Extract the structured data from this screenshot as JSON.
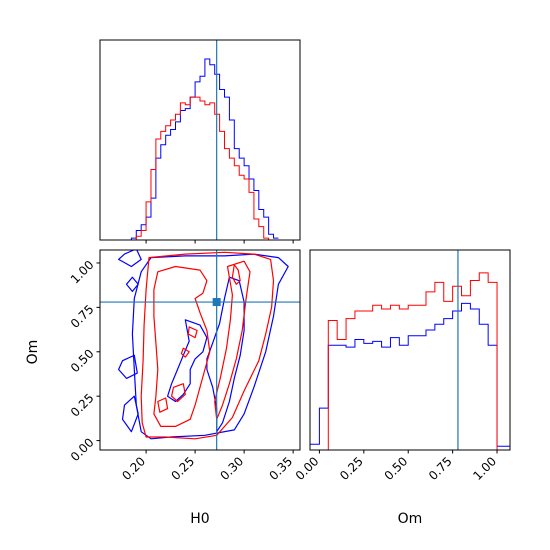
{
  "chart_data": {
    "type": "corner",
    "colors": {
      "series_a": "#0000ff",
      "series_b": "#ff0000",
      "truth": "#1f77b4"
    },
    "truths": {
      "H0": 0.272,
      "Om": 0.78
    },
    "parameters": [
      {
        "name": "H0",
        "label": "H0",
        "range": [
          0.153,
          0.357
        ],
        "ticks": [
          0.2,
          0.25,
          0.3,
          0.35
        ],
        "tick_labels": [
          "0.20",
          "0.25",
          "0.30",
          "0.35"
        ]
      },
      {
        "name": "Om",
        "label": "Om",
        "range": [
          -0.053,
          1.073
        ],
        "ticks": [
          0.0,
          0.25,
          0.5,
          0.75,
          1.0
        ],
        "tick_labels": [
          "0.00",
          "0.25",
          "0.50",
          "0.75",
          "1.00"
        ]
      }
    ],
    "marginals": {
      "H0": {
        "ymax": 1.0,
        "series": [
          {
            "name": "",
            "color": "#0000ff",
            "edges": [
              0.175,
              0.185,
              0.19,
              0.195,
              0.2,
              0.205,
              0.21,
              0.215,
              0.22,
              0.225,
              0.23,
              0.235,
              0.24,
              0.245,
              0.25,
              0.255,
              0.26,
              0.265,
              0.27,
              0.275,
              0.28,
              0.285,
              0.29,
              0.295,
              0.3,
              0.305,
              0.31,
              0.315,
              0.32,
              0.325,
              0.33,
              0.335
            ],
            "values": [
              0.0,
              0.01,
              0.05,
              0.08,
              0.12,
              0.22,
              0.43,
              0.5,
              0.55,
              0.58,
              0.62,
              0.68,
              0.69,
              0.75,
              0.83,
              0.86,
              0.95,
              0.92,
              0.87,
              0.79,
              0.75,
              0.63,
              0.48,
              0.43,
              0.39,
              0.32,
              0.26,
              0.16,
              0.12,
              0.03,
              0.01
            ]
          },
          {
            "name": "",
            "color": "#ff0000",
            "edges": [
              0.175,
              0.185,
              0.19,
              0.195,
              0.2,
              0.205,
              0.21,
              0.215,
              0.22,
              0.225,
              0.23,
              0.235,
              0.24,
              0.245,
              0.25,
              0.255,
              0.26,
              0.265,
              0.27,
              0.275,
              0.28,
              0.285,
              0.29,
              0.295,
              0.3,
              0.305,
              0.31,
              0.315,
              0.32,
              0.325,
              0.33,
              0.335
            ],
            "values": [
              0.0,
              0.0,
              0.02,
              0.05,
              0.2,
              0.37,
              0.53,
              0.57,
              0.6,
              0.63,
              0.66,
              0.72,
              0.71,
              0.75,
              0.75,
              0.73,
              0.71,
              0.72,
              0.66,
              0.57,
              0.48,
              0.43,
              0.39,
              0.34,
              0.32,
              0.25,
              0.11,
              0.07,
              0.01,
              0.0,
              0.0
            ]
          }
        ]
      },
      "Om": {
        "ymax": 1.0,
        "series": [
          {
            "name": "",
            "color": "#0000ff",
            "edges": [
              -0.053,
              0.0,
              0.05,
              0.1,
              0.15,
              0.2,
              0.25,
              0.3,
              0.35,
              0.4,
              0.45,
              0.5,
              0.55,
              0.6,
              0.65,
              0.7,
              0.75,
              0.8,
              0.85,
              0.9,
              0.95,
              1.0,
              1.073
            ],
            "values": [
              0.03,
              0.22,
              0.55,
              0.55,
              0.54,
              0.58,
              0.56,
              0.57,
              0.54,
              0.59,
              0.55,
              0.6,
              0.6,
              0.63,
              0.66,
              0.69,
              0.73,
              0.77,
              0.74,
              0.66,
              0.55,
              0.02
            ]
          },
          {
            "name": "",
            "color": "#ff0000",
            "edges": [
              -0.053,
              0.0,
              0.05,
              0.1,
              0.15,
              0.2,
              0.25,
              0.3,
              0.35,
              0.4,
              0.45,
              0.5,
              0.55,
              0.6,
              0.65,
              0.7,
              0.75,
              0.8,
              0.85,
              0.9,
              0.95,
              1.0,
              1.073
            ],
            "values": [
              0.0,
              0.0,
              0.68,
              0.58,
              0.69,
              0.73,
              0.73,
              0.76,
              0.74,
              0.76,
              0.74,
              0.76,
              0.76,
              0.83,
              0.88,
              0.78,
              0.86,
              0.81,
              0.89,
              0.93,
              0.88,
              0.0
            ]
          }
        ]
      }
    },
    "joint": {
      "x": "H0",
      "y": "Om",
      "contours": [
        {
          "color": "#0000ff",
          "points": [
            [
              0.205,
              1.03
            ],
            [
              0.24,
              1.04
            ],
            [
              0.28,
              1.04
            ],
            [
              0.31,
              1.05
            ],
            [
              0.335,
              1.03
            ],
            [
              0.345,
              0.98
            ],
            [
              0.335,
              0.88
            ],
            [
              0.33,
              0.7
            ],
            [
              0.322,
              0.5
            ],
            [
              0.31,
              0.3
            ],
            [
              0.3,
              0.15
            ],
            [
              0.29,
              0.06
            ],
            [
              0.26,
              0.03
            ],
            [
              0.225,
              0.02
            ],
            [
              0.205,
              0.01
            ],
            [
              0.195,
              0.05
            ],
            [
              0.19,
              0.2
            ],
            [
              0.188,
              0.4
            ],
            [
              0.186,
              0.6
            ],
            [
              0.188,
              0.8
            ],
            [
              0.195,
              0.95
            ]
          ]
        },
        {
          "color": "#0000ff",
          "points": [
            [
              0.178,
              1.05
            ],
            [
              0.19,
              1.08
            ],
            [
              0.195,
              1.02
            ],
            [
              0.185,
              0.98
            ],
            [
              0.172,
              1.02
            ]
          ]
        },
        {
          "color": "#0000ff",
          "points": [
            [
              0.186,
              0.92
            ],
            [
              0.192,
              0.88
            ],
            [
              0.186,
              0.84
            ],
            [
              0.18,
              0.88
            ]
          ]
        },
        {
          "color": "#0000ff",
          "points": [
            [
              0.176,
              0.45
            ],
            [
              0.188,
              0.48
            ],
            [
              0.191,
              0.38
            ],
            [
              0.18,
              0.35
            ],
            [
              0.172,
              0.4
            ]
          ]
        },
        {
          "color": "#0000ff",
          "points": [
            [
              0.178,
              0.2
            ],
            [
              0.188,
              0.25
            ],
            [
              0.192,
              0.15
            ],
            [
              0.185,
              0.05
            ],
            [
              0.176,
              0.12
            ]
          ]
        },
        {
          "color": "#0000ff",
          "points": [
            [
              0.24,
              0.68
            ],
            [
              0.255,
              0.65
            ],
            [
              0.262,
              0.58
            ],
            [
              0.258,
              0.5
            ],
            [
              0.25,
              0.46
            ],
            [
              0.245,
              0.4
            ],
            [
              0.245,
              0.32
            ],
            [
              0.238,
              0.26
            ],
            [
              0.23,
              0.22
            ],
            [
              0.222,
              0.25
            ],
            [
              0.226,
              0.32
            ],
            [
              0.232,
              0.4
            ],
            [
              0.238,
              0.48
            ],
            [
              0.244,
              0.56
            ]
          ]
        },
        {
          "color": "#0000ff",
          "points": [
            [
              0.262,
              0.46
            ],
            [
              0.262,
              0.4
            ],
            [
              0.268,
              0.3
            ],
            [
              0.272,
              0.18
            ],
            [
              0.272,
              0.05
            ],
            [
              0.278,
              0.1
            ],
            [
              0.285,
              0.22
            ],
            [
              0.29,
              0.35
            ],
            [
              0.296,
              0.48
            ],
            [
              0.3,
              0.62
            ],
            [
              0.3,
              0.78
            ],
            [
              0.295,
              0.9
            ],
            [
              0.285,
              0.92
            ],
            [
              0.28,
              0.8
            ],
            [
              0.275,
              0.66
            ],
            [
              0.268,
              0.55
            ]
          ]
        },
        {
          "color": "#ff0000",
          "points": [
            [
              0.203,
              1.03
            ],
            [
              0.24,
              1.05
            ],
            [
              0.28,
              1.06
            ],
            [
              0.31,
              1.05
            ],
            [
              0.327,
              1.02
            ],
            [
              0.33,
              0.9
            ],
            [
              0.328,
              0.75
            ],
            [
              0.322,
              0.6
            ],
            [
              0.315,
              0.45
            ],
            [
              0.3,
              0.28
            ],
            [
              0.288,
              0.13
            ],
            [
              0.272,
              0.03
            ],
            [
              0.25,
              0.01
            ],
            [
              0.22,
              0.02
            ],
            [
              0.2,
              0.02
            ],
            [
              0.196,
              0.1
            ],
            [
              0.195,
              0.25
            ],
            [
              0.197,
              0.45
            ],
            [
              0.198,
              0.65
            ],
            [
              0.2,
              0.85
            ]
          ]
        },
        {
          "color": "#ff0000",
          "points": [
            [
              0.212,
              0.95
            ],
            [
              0.23,
              0.98
            ],
            [
              0.255,
              0.96
            ],
            [
              0.262,
              0.9
            ],
            [
              0.258,
              0.83
            ],
            [
              0.25,
              0.8
            ],
            [
              0.255,
              0.72
            ],
            [
              0.262,
              0.62
            ],
            [
              0.265,
              0.5
            ],
            [
              0.26,
              0.4
            ],
            [
              0.255,
              0.3
            ],
            [
              0.25,
              0.2
            ],
            [
              0.245,
              0.12
            ],
            [
              0.23,
              0.08
            ],
            [
              0.215,
              0.08
            ],
            [
              0.208,
              0.15
            ],
            [
              0.21,
              0.25
            ],
            [
              0.212,
              0.4
            ],
            [
              0.21,
              0.55
            ],
            [
              0.208,
              0.7
            ],
            [
              0.208,
              0.85
            ]
          ]
        },
        {
          "color": "#ff0000",
          "points": [
            [
              0.283,
              0.98
            ],
            [
              0.3,
              1.01
            ],
            [
              0.306,
              0.95
            ],
            [
              0.302,
              0.8
            ],
            [
              0.298,
              0.62
            ],
            [
              0.292,
              0.46
            ],
            [
              0.285,
              0.32
            ],
            [
              0.278,
              0.2
            ],
            [
              0.272,
              0.12
            ],
            [
              0.27,
              0.22
            ],
            [
              0.276,
              0.36
            ],
            [
              0.282,
              0.52
            ],
            [
              0.286,
              0.68
            ],
            [
              0.288,
              0.82
            ]
          ]
        },
        {
          "color": "#ff0000",
          "points": [
            [
              0.29,
              0.99
            ],
            [
              0.294,
              0.96
            ],
            [
              0.296,
              0.9
            ],
            [
              0.292,
              0.88
            ],
            [
              0.288,
              0.92
            ]
          ]
        },
        {
          "color": "#ff0000",
          "points": [
            [
              0.244,
              0.64
            ],
            [
              0.252,
              0.62
            ],
            [
              0.25,
              0.58
            ],
            [
              0.243,
              0.6
            ]
          ]
        },
        {
          "color": "#ff0000",
          "points": [
            [
              0.238,
              0.52
            ],
            [
              0.244,
              0.5
            ],
            [
              0.24,
              0.47
            ],
            [
              0.236,
              0.49
            ]
          ]
        },
        {
          "color": "#ff0000",
          "points": [
            [
              0.228,
              0.3
            ],
            [
              0.238,
              0.32
            ],
            [
              0.24,
              0.26
            ],
            [
              0.232,
              0.22
            ],
            [
              0.226,
              0.25
            ]
          ]
        },
        {
          "color": "#ff0000",
          "points": [
            [
              0.212,
              0.22
            ],
            [
              0.22,
              0.24
            ],
            [
              0.222,
              0.18
            ],
            [
              0.214,
              0.16
            ]
          ]
        }
      ]
    }
  }
}
